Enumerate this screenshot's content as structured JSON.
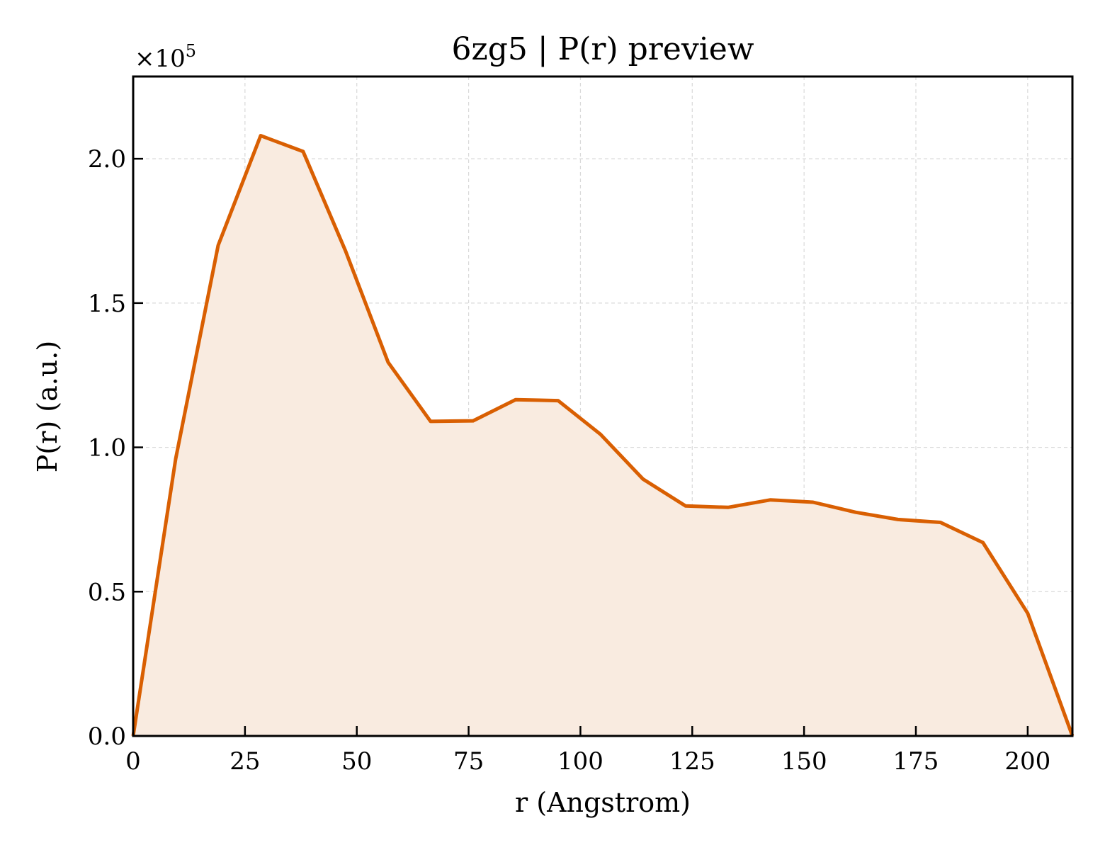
{
  "chart_data": {
    "type": "area",
    "title": "6zg5 | P(r) preview",
    "xlabel": "r (Angstrom)",
    "ylabel": "P(r) (a.u.)",
    "y_multiplier": "×10",
    "y_multiplier_exp": "5",
    "xlim": [
      0,
      210
    ],
    "ylim": [
      0,
      2.285
    ],
    "xticks": [
      0,
      25,
      50,
      75,
      100,
      125,
      150,
      175,
      200
    ],
    "xtick_labels": [
      "0",
      "25",
      "50",
      "75",
      "100",
      "125",
      "150",
      "175",
      "200"
    ],
    "yticks": [
      0.0,
      0.5,
      1.0,
      1.5,
      2.0
    ],
    "ytick_labels": [
      "0.0",
      "0.5",
      "1.0",
      "1.5",
      "2.0"
    ],
    "grid": true,
    "line_color": "#d95f02",
    "fill_color": "#f9ebe0",
    "series": [
      {
        "x": [
          0,
          9.5,
          19,
          28.5,
          38,
          47.5,
          57,
          66.5,
          76,
          85.5,
          95,
          104.5,
          114,
          123.5,
          133,
          142.5,
          152,
          161.5,
          171,
          180.5,
          190,
          200,
          210
        ],
        "y": [
          0.0,
          0.96,
          1.7,
          2.08,
          2.025,
          1.68,
          1.295,
          1.09,
          1.092,
          1.165,
          1.162,
          1.045,
          0.89,
          0.797,
          0.792,
          0.818,
          0.81,
          0.775,
          0.75,
          0.74,
          0.67,
          0.425,
          0.0
        ]
      }
    ]
  }
}
